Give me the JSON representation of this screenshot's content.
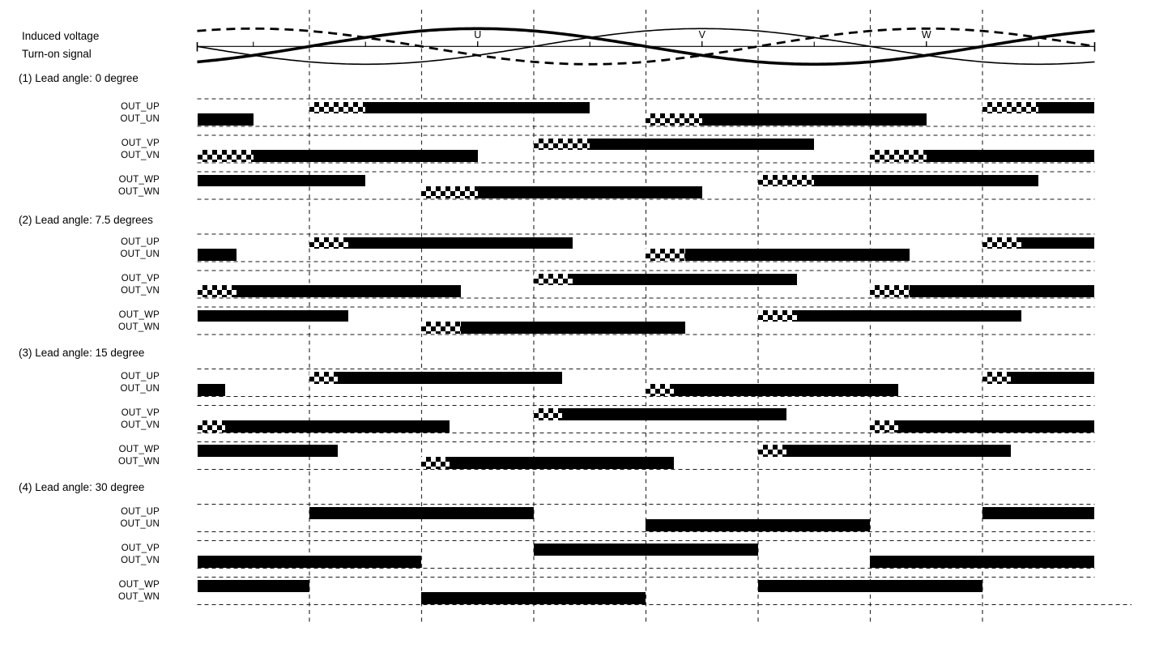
{
  "title_labels": {
    "induced_voltage": "Induced voltage",
    "turn_on_signal": "Turn-on signal"
  },
  "waveform": {
    "deg_span": [
      0,
      480
    ],
    "deg_per_gridline": 60,
    "phase_curves": [
      {
        "name": "U",
        "style": "thick-solid",
        "phase_deg": 60
      },
      {
        "name": "V",
        "style": "thin-solid",
        "phase_deg": 180
      },
      {
        "name": "W",
        "style": "thick-dashed",
        "phase_deg": 300
      }
    ],
    "phase_labels": [
      {
        "text": "U",
        "deg": 150
      },
      {
        "text": "V",
        "deg": 270
      },
      {
        "text": "W",
        "deg": 390
      }
    ],
    "axis_tick_degs": [
      30,
      90,
      150,
      210,
      270,
      330,
      390,
      450
    ]
  },
  "grid": {
    "vertical_line_degs": [
      60,
      120,
      180,
      240,
      300,
      360,
      420
    ]
  },
  "colors": {
    "ink": "#000000",
    "guide": "#1a1a1a",
    "gridline": "#333333"
  },
  "sections": [
    {
      "title": "(1) Lead angle: 0 degree",
      "lead_angle_deg": 0,
      "overlap_deg": 30,
      "rows": [
        {
          "label": "OUT_UP",
          "segments": [
            {
              "type": "checker",
              "from": 60,
              "to": 90
            },
            {
              "type": "solid",
              "from": 90,
              "to": 210
            },
            {
              "type": "checker",
              "from": 420,
              "to": 450
            },
            {
              "type": "solid",
              "from": 450,
              "to": 480
            }
          ]
        },
        {
          "label": "OUT_UN",
          "segments": [
            {
              "type": "solid",
              "from": 0,
              "to": 30
            },
            {
              "type": "checker",
              "from": 240,
              "to": 270
            },
            {
              "type": "solid",
              "from": 270,
              "to": 390
            }
          ]
        },
        {
          "label": "OUT_VP",
          "segments": [
            {
              "type": "checker",
              "from": 180,
              "to": 210
            },
            {
              "type": "solid",
              "from": 210,
              "to": 330
            }
          ]
        },
        {
          "label": "OUT_VN",
          "segments": [
            {
              "type": "checker",
              "from": 0,
              "to": 30
            },
            {
              "type": "solid",
              "from": 30,
              "to": 150
            },
            {
              "type": "checker",
              "from": 360,
              "to": 390
            },
            {
              "type": "solid",
              "from": 390,
              "to": 480
            }
          ]
        },
        {
          "label": "OUT_WP",
          "segments": [
            {
              "type": "solid",
              "from": 0,
              "to": 90
            },
            {
              "type": "checker",
              "from": 300,
              "to": 330
            },
            {
              "type": "solid",
              "from": 330,
              "to": 450
            }
          ]
        },
        {
          "label": "OUT_WN",
          "segments": [
            {
              "type": "checker",
              "from": 120,
              "to": 150
            },
            {
              "type": "solid",
              "from": 150,
              "to": 270
            }
          ]
        }
      ]
    },
    {
      "title": "(2) Lead angle: 7.5 degrees",
      "lead_angle_deg": 7.5,
      "overlap_deg": 21,
      "rows": [
        {
          "label": "OUT_UP",
          "segments": [
            {
              "type": "checker",
              "from": 60,
              "to": 81
            },
            {
              "type": "solid",
              "from": 81,
              "to": 201
            },
            {
              "type": "checker",
              "from": 420,
              "to": 441
            },
            {
              "type": "solid",
              "from": 441,
              "to": 480
            }
          ]
        },
        {
          "label": "OUT_UN",
          "segments": [
            {
              "type": "solid",
              "from": 0,
              "to": 21
            },
            {
              "type": "checker",
              "from": 240,
              "to": 261
            },
            {
              "type": "solid",
              "from": 261,
              "to": 381
            }
          ]
        },
        {
          "label": "OUT_VP",
          "segments": [
            {
              "type": "checker",
              "from": 180,
              "to": 201
            },
            {
              "type": "solid",
              "from": 201,
              "to": 321
            }
          ]
        },
        {
          "label": "OUT_VN",
          "segments": [
            {
              "type": "checker",
              "from": 0,
              "to": 21
            },
            {
              "type": "solid",
              "from": 21,
              "to": 141
            },
            {
              "type": "checker",
              "from": 360,
              "to": 381
            },
            {
              "type": "solid",
              "from": 381,
              "to": 480
            }
          ]
        },
        {
          "label": "OUT_WP",
          "segments": [
            {
              "type": "solid",
              "from": 0,
              "to": 81
            },
            {
              "type": "checker",
              "from": 300,
              "to": 321
            },
            {
              "type": "solid",
              "from": 321,
              "to": 441
            }
          ]
        },
        {
          "label": "OUT_WN",
          "segments": [
            {
              "type": "checker",
              "from": 120,
              "to": 141
            },
            {
              "type": "solid",
              "from": 141,
              "to": 261
            }
          ]
        }
      ]
    },
    {
      "title": "(3) Lead angle: 15 degree",
      "lead_angle_deg": 15,
      "overlap_deg": 15,
      "rows": [
        {
          "label": "OUT_UP",
          "segments": [
            {
              "type": "checker",
              "from": 60,
              "to": 75
            },
            {
              "type": "solid",
              "from": 75,
              "to": 195
            },
            {
              "type": "checker",
              "from": 420,
              "to": 435
            },
            {
              "type": "solid",
              "from": 435,
              "to": 480
            }
          ]
        },
        {
          "label": "OUT_UN",
          "segments": [
            {
              "type": "solid",
              "from": 0,
              "to": 15
            },
            {
              "type": "checker",
              "from": 240,
              "to": 255
            },
            {
              "type": "solid",
              "from": 255,
              "to": 375
            }
          ]
        },
        {
          "label": "OUT_VP",
          "segments": [
            {
              "type": "checker",
              "from": 180,
              "to": 195
            },
            {
              "type": "solid",
              "from": 195,
              "to": 315
            }
          ]
        },
        {
          "label": "OUT_VN",
          "segments": [
            {
              "type": "checker",
              "from": 0,
              "to": 15
            },
            {
              "type": "solid",
              "from": 15,
              "to": 135
            },
            {
              "type": "checker",
              "from": 360,
              "to": 375
            },
            {
              "type": "solid",
              "from": 375,
              "to": 480
            }
          ]
        },
        {
          "label": "OUT_WP",
          "segments": [
            {
              "type": "solid",
              "from": 0,
              "to": 75
            },
            {
              "type": "checker",
              "from": 300,
              "to": 315
            },
            {
              "type": "solid",
              "from": 315,
              "to": 435
            }
          ]
        },
        {
          "label": "OUT_WN",
          "segments": [
            {
              "type": "checker",
              "from": 120,
              "to": 135
            },
            {
              "type": "solid",
              "from": 135,
              "to": 255
            }
          ]
        }
      ]
    },
    {
      "title": "(4) Lead angle: 30 degree",
      "lead_angle_deg": 30,
      "overlap_deg": 0,
      "rows": [
        {
          "label": "OUT_UP",
          "segments": [
            {
              "type": "solid",
              "from": 60,
              "to": 180
            },
            {
              "type": "solid",
              "from": 420,
              "to": 480
            }
          ]
        },
        {
          "label": "OUT_UN",
          "segments": [
            {
              "type": "solid",
              "from": 240,
              "to": 360
            }
          ]
        },
        {
          "label": "OUT_VP",
          "segments": [
            {
              "type": "solid",
              "from": 180,
              "to": 300
            }
          ]
        },
        {
          "label": "OUT_VN",
          "segments": [
            {
              "type": "solid",
              "from": 0,
              "to": 120
            },
            {
              "type": "solid",
              "from": 360,
              "to": 480
            }
          ]
        },
        {
          "label": "OUT_WP",
          "segments": [
            {
              "type": "solid",
              "from": 0,
              "to": 60
            },
            {
              "type": "solid",
              "from": 300,
              "to": 420
            }
          ]
        },
        {
          "label": "OUT_WN",
          "segments": [
            {
              "type": "solid",
              "from": 120,
              "to": 240
            }
          ]
        }
      ]
    }
  ]
}
